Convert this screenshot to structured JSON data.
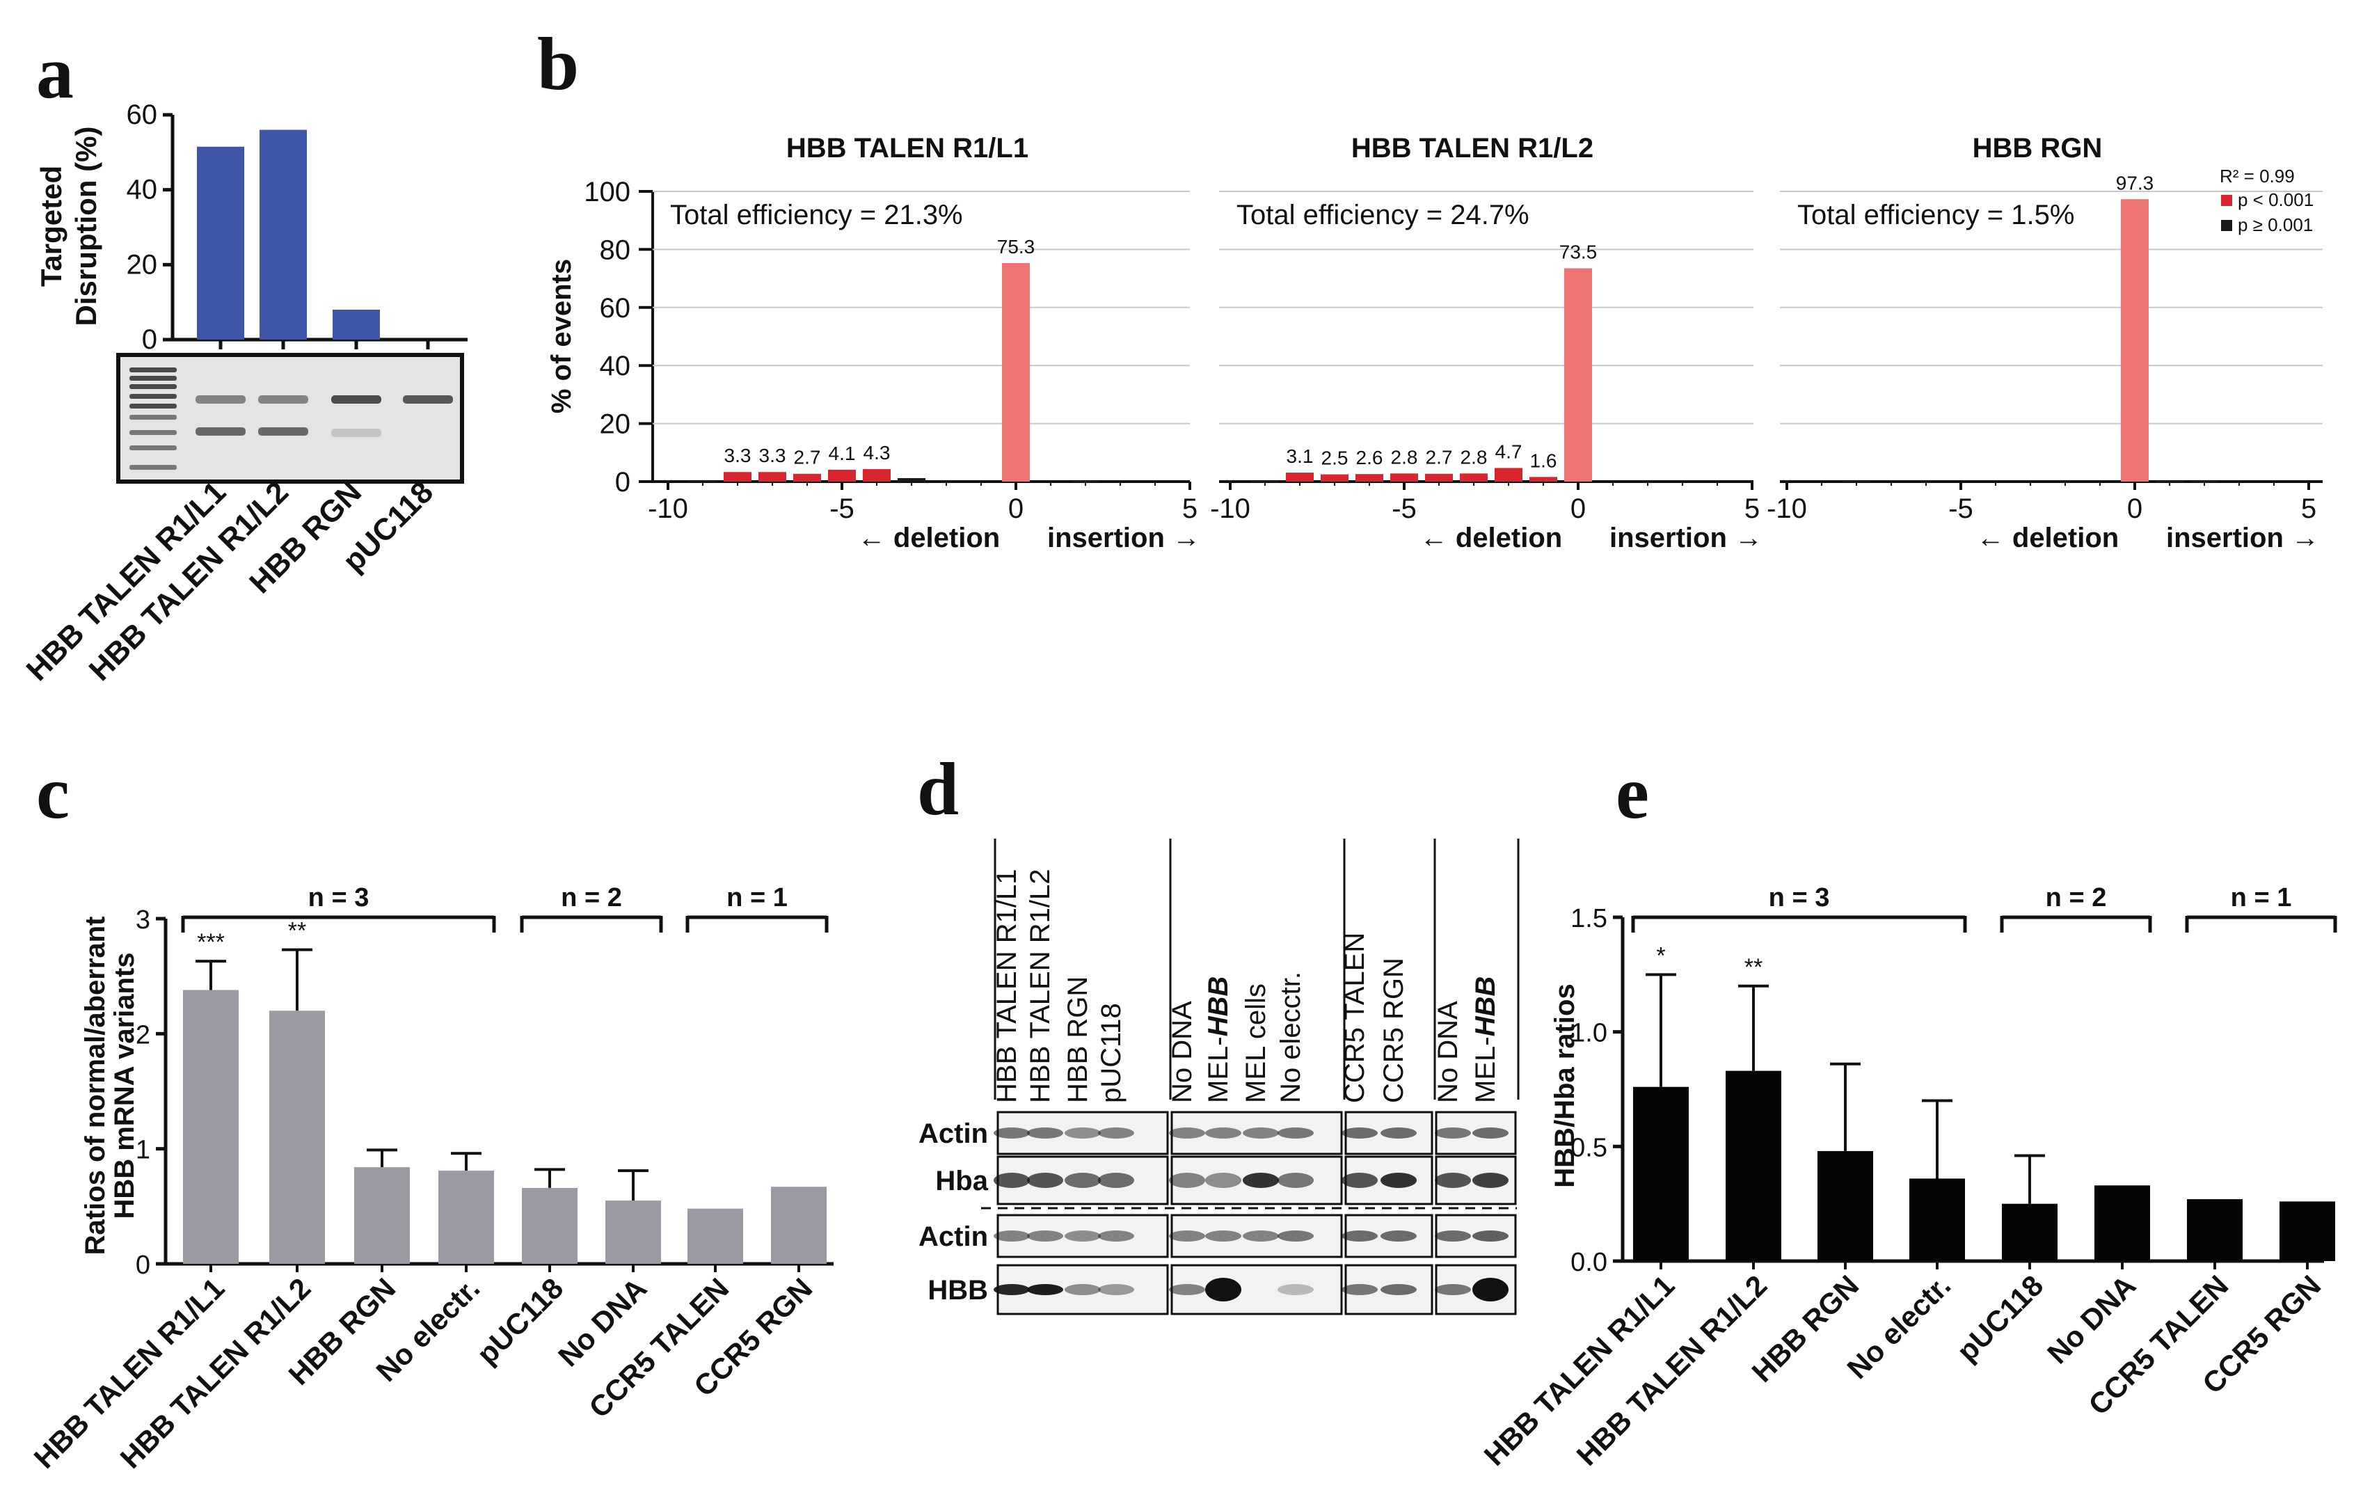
{
  "panel_letters": [
    "a",
    "b",
    "c",
    "d",
    "e"
  ],
  "chart_data": [
    {
      "panel": "a",
      "type": "bar",
      "ylabel": "Targeted Disruption (%)",
      "ylim": [
        0,
        60
      ],
      "yticks": [
        0,
        20,
        40,
        60
      ],
      "categories": [
        "HBB TALEN R1/L1",
        "HBB TALEN R1/L2",
        "HBB RGN",
        "pUC118"
      ],
      "values": [
        51.5,
        56,
        8,
        0
      ],
      "bar_color": "#3f55a8",
      "gel_label": "gel image"
    },
    {
      "panel": "b",
      "type": "bar",
      "xlabel_left": "← deletion",
      "xlabel_right": "insertion →",
      "ylabel": "% of events",
      "ylim": [
        0,
        100
      ],
      "yticks": [
        0,
        20,
        40,
        60,
        80,
        100
      ],
      "xticks": [
        -10,
        -5,
        0,
        5
      ],
      "xtick_labels": [
        "-10",
        "-5",
        "0",
        "5"
      ],
      "legend": {
        "r2": "R² = 0.99",
        "sig": "p < 0.001",
        "nonsig": "p ≥ 0.001",
        "sig_color": "#d9262e",
        "nonsig_color": "#1a1a1a"
      },
      "subplots": [
        {
          "title": "HBB TALEN R1/L1",
          "efficiency": "Total efficiency = 21.3%",
          "bars": [
            {
              "x": -9,
              "y": 0.5,
              "sig": false
            },
            {
              "x": -8,
              "y": 3.3,
              "sig": true,
              "label": "3.3"
            },
            {
              "x": -7,
              "y": 3.3,
              "sig": true,
              "label": "3.3"
            },
            {
              "x": -6,
              "y": 2.7,
              "sig": true,
              "label": "2.7"
            },
            {
              "x": -5,
              "y": 4.1,
              "sig": true,
              "label": "4.1"
            },
            {
              "x": -4,
              "y": 4.3,
              "sig": true,
              "label": "4.3"
            },
            {
              "x": -3,
              "y": 1.2,
              "sig": false
            },
            {
              "x": 0,
              "y": 75.3,
              "sig": true,
              "wt": true,
              "label": "75.3"
            },
            {
              "x": 2,
              "y": 0.4,
              "sig": false
            }
          ]
        },
        {
          "title": "HBB TALEN R1/L2",
          "efficiency": "Total efficiency = 24.7%",
          "bars": [
            {
              "x": -9,
              "y": 0.4,
              "sig": false
            },
            {
              "x": -8,
              "y": 3.1,
              "sig": true,
              "label": "3.1"
            },
            {
              "x": -7,
              "y": 2.5,
              "sig": true,
              "label": "2.5"
            },
            {
              "x": -6,
              "y": 2.6,
              "sig": true,
              "label": "2.6"
            },
            {
              "x": -5,
              "y": 2.8,
              "sig": true,
              "label": "2.8"
            },
            {
              "x": -4,
              "y": 2.7,
              "sig": true,
              "label": "2.7"
            },
            {
              "x": -3,
              "y": 2.8,
              "sig": true,
              "label": "2.8"
            },
            {
              "x": -2,
              "y": 4.7,
              "sig": true,
              "label": "4.7"
            },
            {
              "x": -1,
              "y": 1.6,
              "sig": true,
              "label": "1.6"
            },
            {
              "x": 0,
              "y": 73.5,
              "sig": true,
              "wt": true,
              "label": "73.5"
            }
          ]
        },
        {
          "title": "HBB RGN",
          "efficiency": "Total efficiency = 1.5%",
          "bars": [
            {
              "x": -8,
              "y": 0.3,
              "sig": false
            },
            {
              "x": 0,
              "y": 97.3,
              "sig": true,
              "wt": true,
              "label": "97.3"
            },
            {
              "x": 1,
              "y": 0.4,
              "sig": false
            },
            {
              "x": 2,
              "y": 0.3,
              "sig": false
            }
          ]
        }
      ]
    },
    {
      "panel": "c",
      "type": "bar",
      "ylabel_line1": "Ratios of normal/aberrant",
      "ylabel_line2": "HBB mRNA variants",
      "ylim": [
        0,
        3
      ],
      "yticks": [
        0,
        1,
        2,
        3
      ],
      "categories": [
        "HBB TALEN R1/L1",
        "HBB TALEN R1/L2",
        "HBB RGN",
        "No electr.",
        "pUC118",
        "No DNA",
        "CCR5 TALEN",
        "CCR5 RGN"
      ],
      "values": [
        2.38,
        2.2,
        0.84,
        0.81,
        0.66,
        0.55,
        0.48,
        0.67
      ],
      "errors": [
        0.25,
        0.53,
        0.15,
        0.15,
        0.16,
        0.26,
        0,
        0
      ],
      "stars": [
        "***",
        "**",
        "",
        "",
        "",
        "",
        "",
        ""
      ],
      "bar_color": "#9a9ba2",
      "groups": [
        {
          "label": "n = 3",
          "start": 0,
          "end": 3
        },
        {
          "label": "n = 2",
          "start": 4,
          "end": 5
        },
        {
          "label": "n = 1",
          "start": 6,
          "end": 7
        }
      ]
    },
    {
      "panel": "d",
      "type": "table",
      "lanes_plain": [
        "HBB TALEN R1/L1",
        "HBB TALEN R1/L2",
        "HBB RGN",
        "pUC118",
        "No DNA",
        "MEL-",
        "MEL cells",
        "No elecctr.",
        "CCR5 TALEN",
        "CCR5 RGN",
        "No DNA",
        "MEL-"
      ],
      "lanes_italic": [
        "",
        "",
        "",
        "",
        "",
        "HBB",
        "",
        "",
        "",
        "",
        "",
        "HBB"
      ],
      "rows": [
        "Actin",
        "Hba",
        "Actin",
        "HBB"
      ]
    },
    {
      "panel": "e",
      "type": "bar",
      "ylabel": "HBB/Hba ratios",
      "ylim": [
        0,
        1.5
      ],
      "yticks": [
        0,
        0.5,
        1,
        1.5
      ],
      "ytick_labels": [
        "0.0",
        "0.5",
        "1.0",
        "1.5"
      ],
      "categories": [
        "HBB TALEN R1/L1",
        "HBB TALEN R1/L2",
        "HBB RGN",
        "No electr.",
        "pUC118",
        "No DNA",
        "CCR5 TALEN",
        "CCR5 RGN"
      ],
      "values": [
        0.76,
        0.83,
        0.48,
        0.36,
        0.25,
        0.33,
        0.27,
        0.26
      ],
      "errors": [
        0.49,
        0.37,
        0.38,
        0.34,
        0.21,
        0,
        0,
        0
      ],
      "stars": [
        "*",
        "**",
        "",
        "",
        "",
        "",
        "",
        ""
      ],
      "bar_color": "#050505",
      "groups": [
        {
          "label": "n = 3",
          "start": 0,
          "end": 3
        },
        {
          "label": "n = 2",
          "start": 4,
          "end": 5
        },
        {
          "label": "n = 1",
          "start": 6,
          "end": 7
        }
      ]
    }
  ]
}
